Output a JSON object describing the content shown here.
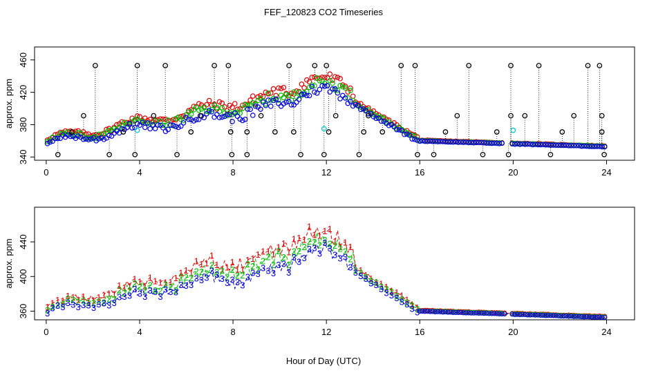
{
  "chart_data": {
    "type": "scatter",
    "title": "FEF_120823  CO2 Timeseries",
    "xlabel": "Hour of Day (UTC)",
    "colors": {
      "black": "#000000",
      "red": "#dd0000",
      "green": "#00bb00",
      "blue": "#0000dd",
      "cyan": "#00cccc"
    },
    "panels": [
      {
        "ylabel": "approx. ppm",
        "xlim": [
          -0.5,
          25.2
        ],
        "ylim": [
          336,
          476
        ],
        "xticks": [
          "0",
          "4",
          "8",
          "12",
          "16",
          "20",
          "24"
        ],
        "yticks": [
          "340",
          "380",
          "420",
          "460"
        ],
        "series": [
          {
            "name": "black",
            "marker": "circle",
            "points": [
              [
                0.5,
                343
              ],
              [
                1.1,
                371
              ],
              [
                1.6,
                391
              ],
              [
                2.1,
                453
              ],
              [
                2.7,
                343
              ],
              [
                3.3,
                371
              ],
              [
                3.8,
                343
              ],
              [
                3.9,
                453
              ],
              [
                4.6,
                391
              ],
              [
                5.1,
                453
              ],
              [
                5.6,
                343
              ],
              [
                6.2,
                371
              ],
              [
                6.6,
                391
              ],
              [
                7.2,
                453
              ],
              [
                7.9,
                371
              ],
              [
                7.95,
                343
              ],
              [
                7.8,
                453
              ],
              [
                8.6,
                343
              ],
              [
                8.6,
                371
              ],
              [
                9.2,
                391
              ],
              [
                9.8,
                371
              ],
              [
                10.4,
                453
              ],
              [
                10.6,
                371
              ],
              [
                10.9,
                343
              ],
              [
                11.5,
                453
              ],
              [
                11.9,
                343
              ],
              [
                12.0,
                453
              ],
              [
                12.1,
                371
              ],
              [
                12.4,
                391
              ],
              [
                13.4,
                343
              ],
              [
                13.6,
                371
              ],
              [
                13.8,
                391
              ],
              [
                14.4,
                371
              ],
              [
                15.2,
                453
              ],
              [
                15.8,
                453
              ],
              [
                15.9,
                343
              ],
              [
                16.6,
                343
              ],
              [
                17.1,
                371
              ],
              [
                17.6,
                391
              ],
              [
                18.1,
                453
              ],
              [
                18.7,
                343
              ],
              [
                19.3,
                371
              ],
              [
                19.8,
                343
              ],
              [
                19.9,
                391
              ],
              [
                19.9,
                453
              ],
              [
                20.5,
                391
              ],
              [
                21.1,
                453
              ],
              [
                21.6,
                343
              ],
              [
                22.1,
                371
              ],
              [
                22.6,
                391
              ],
              [
                23.2,
                453
              ],
              [
                23.7,
                453
              ],
              [
                23.8,
                391
              ],
              [
                23.8,
                371
              ],
              [
                23.9,
                343
              ]
            ]
          },
          {
            "name": "cyan",
            "marker": "circle",
            "points": [
              [
                3.9,
                373
              ],
              [
                11.9,
                375
              ],
              [
                20.0,
                373
              ]
            ]
          }
        ]
      },
      {
        "ylabel": "approx. ppm",
        "xlim": [
          -0.5,
          25.2
        ],
        "ylim": [
          350,
          480
        ],
        "xticks": [
          "0",
          "4",
          "8",
          "12",
          "16",
          "20",
          "24"
        ],
        "yticks": [
          "360",
          "400",
          "440"
        ],
        "series": [
          {
            "name": "1",
            "label": "1",
            "color": "red"
          },
          {
            "name": "2",
            "label": "2",
            "color": "green"
          },
          {
            "name": "3",
            "label": "3",
            "color": "blue"
          }
        ]
      }
    ]
  }
}
